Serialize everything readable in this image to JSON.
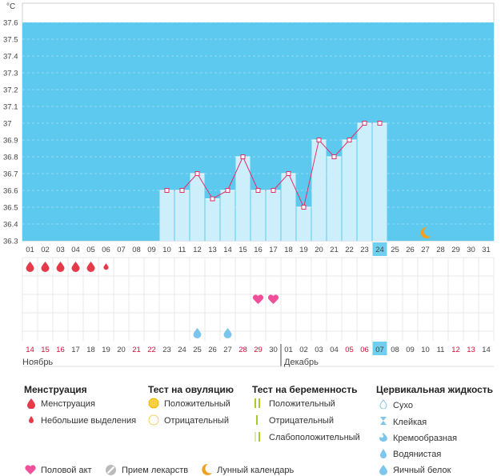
{
  "chart_data": {
    "type": "bar",
    "unit": "°C",
    "ylim": [
      36.3,
      37.65
    ],
    "yticks": [
      "36.3",
      "36.4",
      "36.5",
      "36.6",
      "36.7",
      "36.8",
      "36.9",
      "37",
      "37.1",
      "37.2",
      "37.3",
      "37.4",
      "37.5",
      "37.6"
    ],
    "days": [
      "01",
      "02",
      "03",
      "04",
      "05",
      "06",
      "07",
      "08",
      "09",
      "10",
      "11",
      "12",
      "13",
      "14",
      "15",
      "16",
      "17",
      "18",
      "19",
      "20",
      "21",
      "22",
      "23",
      "24",
      "25",
      "26",
      "27",
      "28",
      "29",
      "30",
      "31"
    ],
    "temperatures": [
      null,
      null,
      null,
      null,
      null,
      null,
      null,
      null,
      null,
      36.6,
      36.6,
      36.7,
      36.55,
      36.6,
      36.8,
      36.6,
      36.6,
      36.7,
      36.5,
      36.9,
      36.8,
      36.9,
      37.0,
      37.0,
      null,
      null,
      null,
      null,
      null,
      null,
      null
    ],
    "highlight_day": "24",
    "moon_day": "27",
    "menstruation_days": [
      "01",
      "02",
      "03",
      "04",
      "05"
    ],
    "spotting_days": [
      "06"
    ],
    "intercourse_days": [
      "16",
      "17"
    ],
    "cervical_fluid_watery_days": [
      "12",
      "14"
    ],
    "calendar_dates": [
      {
        "label": "14",
        "red": true
      },
      {
        "label": "15",
        "red": true
      },
      {
        "label": "16",
        "red": true
      },
      {
        "label": "17",
        "red": false
      },
      {
        "label": "18",
        "red": false
      },
      {
        "label": "19",
        "red": false
      },
      {
        "label": "20",
        "red": false
      },
      {
        "label": "21",
        "red": true
      },
      {
        "label": "22",
        "red": true
      },
      {
        "label": "23",
        "red": false
      },
      {
        "label": "24",
        "red": false
      },
      {
        "label": "25",
        "red": false
      },
      {
        "label": "26",
        "red": false
      },
      {
        "label": "27",
        "red": false
      },
      {
        "label": "28",
        "red": true
      },
      {
        "label": "29",
        "red": true
      },
      {
        "label": "30",
        "red": false
      },
      {
        "label": "01",
        "red": false
      },
      {
        "label": "02",
        "red": false
      },
      {
        "label": "03",
        "red": false
      },
      {
        "label": "04",
        "red": false
      },
      {
        "label": "05",
        "red": true
      },
      {
        "label": "06",
        "red": true
      },
      {
        "label": "07",
        "red": false
      },
      {
        "label": "08",
        "red": false
      },
      {
        "label": "09",
        "red": false
      },
      {
        "label": "10",
        "red": false
      },
      {
        "label": "11",
        "red": false
      },
      {
        "label": "12",
        "red": true
      },
      {
        "label": "13",
        "red": true
      },
      {
        "label": "14",
        "red": false
      }
    ],
    "month_labels": [
      "Ноябрь",
      "Декабрь"
    ],
    "colors": {
      "background": "#5ec9ee",
      "bar": "#cdeefb",
      "line": "#e0306a",
      "highlight": "#6fcfef",
      "grid": "#e8e8e8"
    }
  },
  "legend": {
    "menstruation": {
      "title": "Менструация",
      "items": [
        "Менструация",
        "Небольшие выделения"
      ]
    },
    "ovulation_test": {
      "title": "Тест на овуляцию",
      "items": [
        "Положительный",
        "Отрицательный"
      ]
    },
    "pregnancy_test": {
      "title": "Тест на беременность",
      "items": [
        "Положительный",
        "Отрицательный",
        "Слабоположительный"
      ]
    },
    "cervical_fluid": {
      "title": "Цервикальная жидкость",
      "items": [
        "Сухо",
        "Клейкая",
        "Кремообразная",
        "Водянистая",
        "Яичный белок"
      ]
    },
    "bottom": [
      "Половой акт",
      "Прием лекарств",
      "Лунный календарь"
    ]
  }
}
